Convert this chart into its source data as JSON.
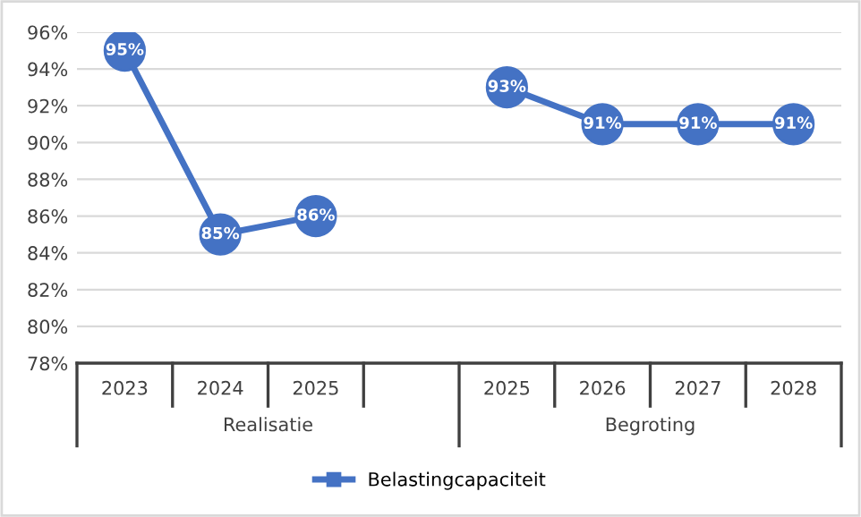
{
  "chart_data": {
    "type": "line",
    "categories": [
      "2023",
      "2024",
      "2025",
      null,
      "2025",
      "2026",
      "2027",
      "2028"
    ],
    "series": [
      {
        "name": "Belastingcapaciteit",
        "color": "#4472c4",
        "values": [
          95,
          85,
          86,
          null,
          93,
          91,
          91,
          91
        ],
        "value_labels": [
          "95%",
          "85%",
          "86%",
          null,
          "93%",
          "91%",
          "91%",
          "91%"
        ]
      }
    ],
    "annotations": [
      "Realisatie",
      "Begroting"
    ],
    "ylim": [
      78,
      96
    ],
    "yticks": [
      {
        "value": 78,
        "label": "78%"
      },
      {
        "value": 80,
        "label": "80%"
      },
      {
        "value": 82,
        "label": "82%"
      },
      {
        "value": 84,
        "label": "84%"
      },
      {
        "value": 86,
        "label": "86%"
      },
      {
        "value": 88,
        "label": "88%"
      },
      {
        "value": 90,
        "label": "90%"
      },
      {
        "value": 92,
        "label": "92%"
      },
      {
        "value": 94,
        "label": "94%"
      },
      {
        "value": 96,
        "label": "96%"
      }
    ],
    "grid": "y",
    "legend": "bottom",
    "marker": "circle",
    "line_style": "solid"
  }
}
